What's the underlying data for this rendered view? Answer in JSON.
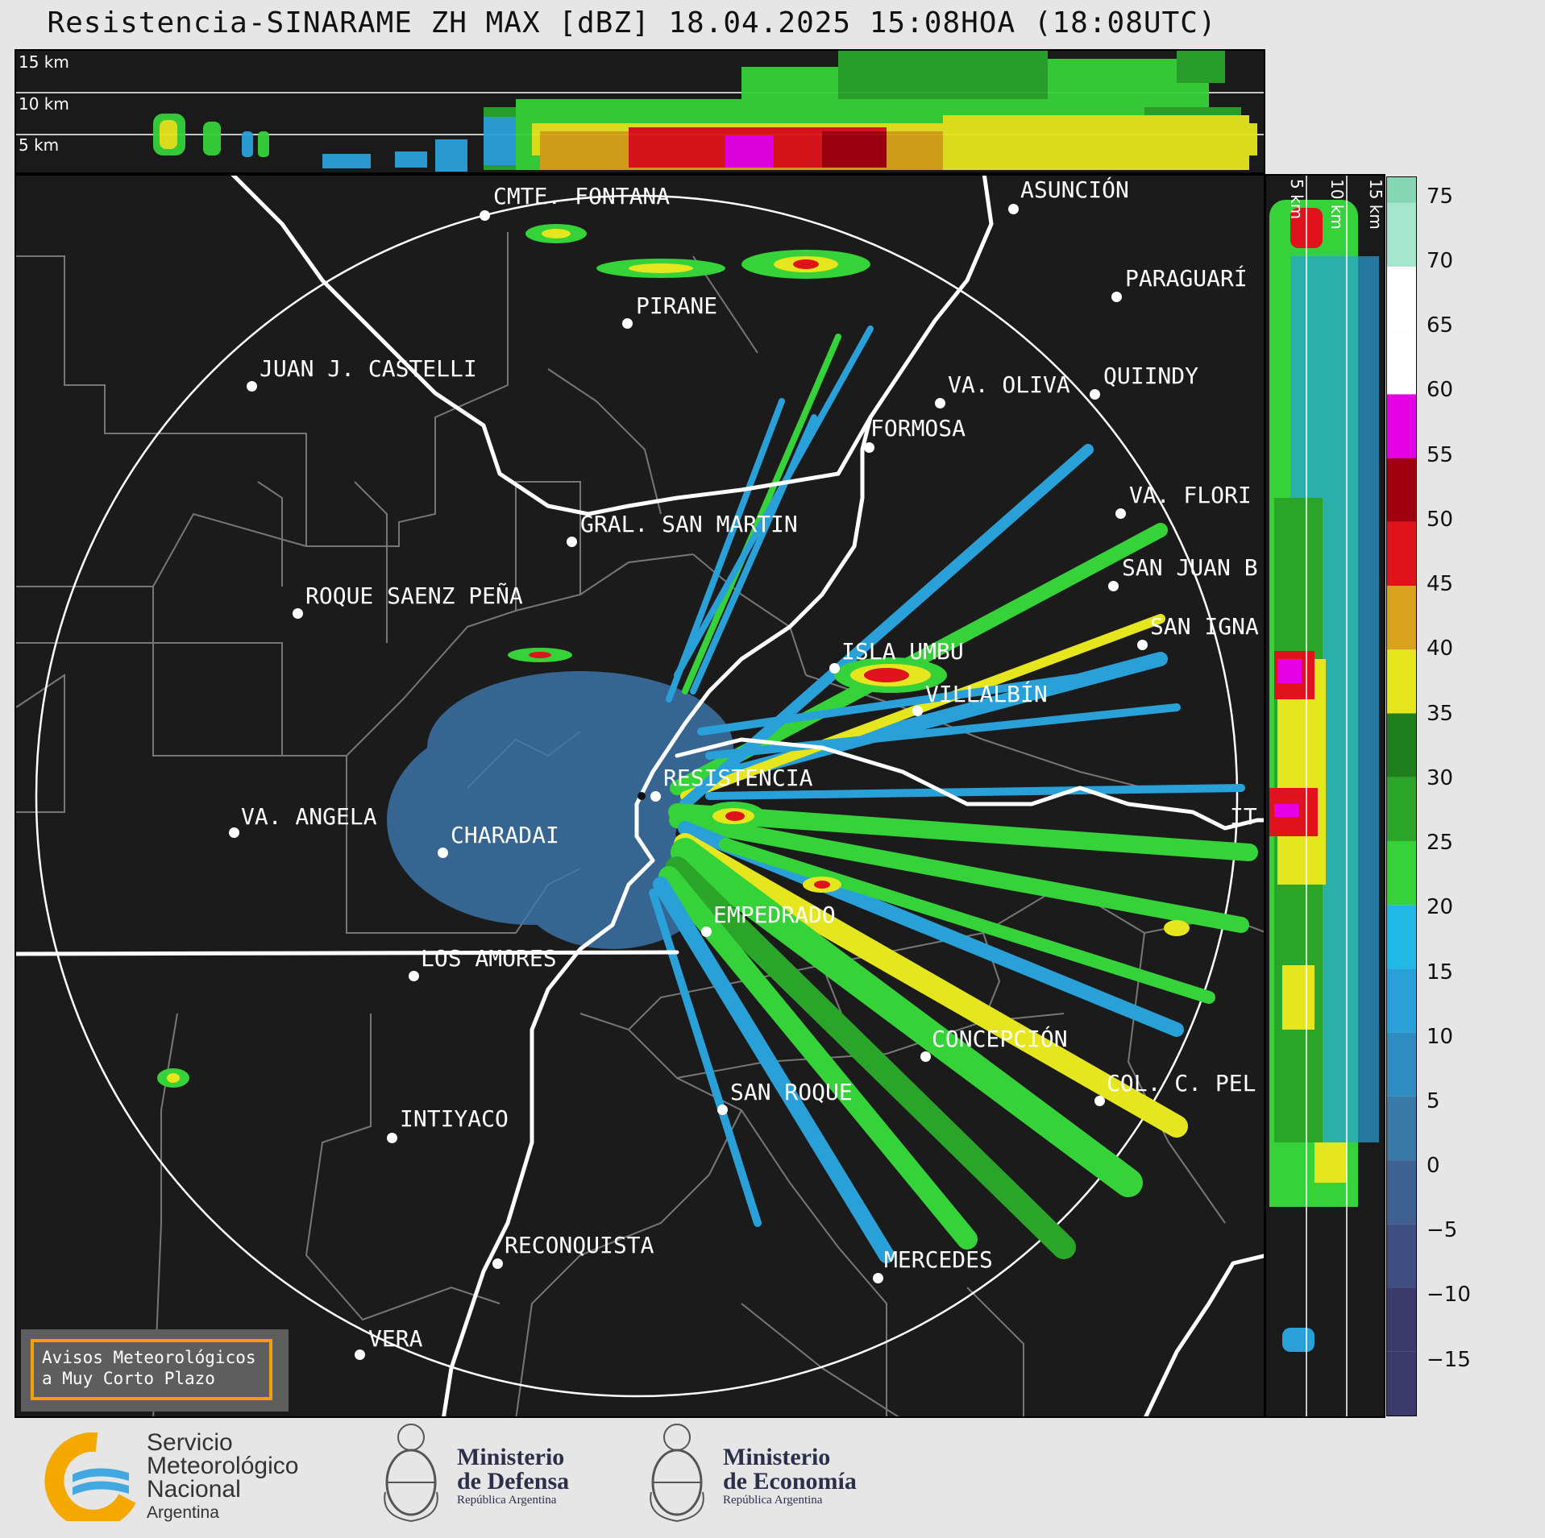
{
  "header": {
    "title": "Resistencia-SINARAME ZH MAX [dBZ] 18.04.2025 15:08HOA (18:08UTC)"
  },
  "height_labels": {
    "top": [
      "15 km",
      "10 km",
      "5 km"
    ],
    "side": [
      "5 km",
      "10 km",
      "15 km"
    ]
  },
  "colorbar": {
    "ticks": [
      "75",
      "70",
      "65",
      "60",
      "55",
      "50",
      "45",
      "40",
      "35",
      "30",
      "25",
      "20",
      "15",
      "10",
      "5",
      "0",
      "−5",
      "−10",
      "−15"
    ],
    "colors": {
      "-15": "#3b3a6b",
      "-10": "#3f4f82",
      "-5": "#3e6191",
      "0": "#3a7aa6",
      "5": "#2f8cc0",
      "10": "#2aa0d8",
      "15": "#22b8e6",
      "20": "#36d23a",
      "25": "#2aa52a",
      "30": "#1f7f1f",
      "35": "#e6e61e",
      "40": "#d9a21c",
      "45": "#e0131c",
      "50": "#a00010",
      "55": "#e600e6",
      "60": "#ffffff",
      "70": "#a6e6cc",
      "75": "#86d6b6"
    }
  },
  "cities": [
    {
      "name": "ASUNCIÓN"
    },
    {
      "name": "CMTE. FONTANA"
    },
    {
      "name": "PARAGUARÍ"
    },
    {
      "name": "PIRANE"
    },
    {
      "name": "QUIINDY"
    },
    {
      "name": "JUAN J. CASTELLI"
    },
    {
      "name": "VA. OLIVA"
    },
    {
      "name": "FORMOSA"
    },
    {
      "name": "VA. FLORI"
    },
    {
      "name": "GRAL. SAN MARTIN"
    },
    {
      "name": "SAN JUAN B"
    },
    {
      "name": "ROQUE SAENZ PEÑA"
    },
    {
      "name": "SAN IGNA"
    },
    {
      "name": "ISLA UMBU"
    },
    {
      "name": "VILLALBÍN"
    },
    {
      "name": "RESISTENCIA"
    },
    {
      "name": "VA. ANGELA"
    },
    {
      "name": "IT"
    },
    {
      "name": "CHARADAI"
    },
    {
      "name": "EMPEDRADO"
    },
    {
      "name": "LOS AMORES"
    },
    {
      "name": "CONCEPCIÓN"
    },
    {
      "name": "SAN ROQUE"
    },
    {
      "name": "COL. C. PEL"
    },
    {
      "name": "INTIYACO"
    },
    {
      "name": "RECONQUISTA"
    },
    {
      "name": "MERCEDES"
    },
    {
      "name": "VERA"
    }
  ],
  "notice": {
    "line1": "Avisos Meteorológicos",
    "line2": "a Muy Corto Plazo"
  },
  "logos": {
    "smn": {
      "line1": "Servicio",
      "line2": "Meteorológico",
      "line3": "Nacional",
      "line4": "Argentina"
    },
    "defensa": {
      "line1": "Ministerio",
      "line2": "de Defensa",
      "line3": "República Argentina"
    },
    "economia": {
      "line1": "Ministerio",
      "line2": "de Economía",
      "line3": "República Argentina"
    }
  }
}
